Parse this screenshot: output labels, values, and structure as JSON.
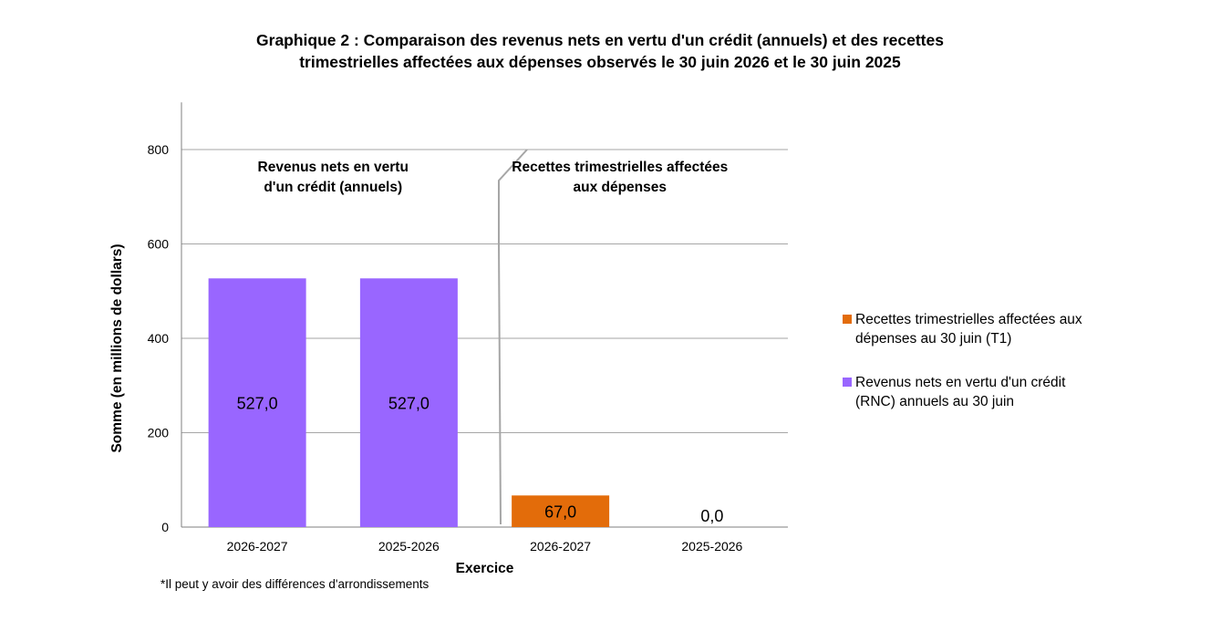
{
  "chart_data": {
    "type": "bar",
    "title_lines": [
      "Graphique 2 : Comparaison des revenus nets en vertu d'un crédit (annuels) et des recettes",
      "trimestrielles affectées aux dépenses observés le 30 juin 2026 et le 30 juin 2025"
    ],
    "xlabel": "Exercice",
    "ylabel": "Somme (en millions de dollars)",
    "ylim": [
      0,
      900
    ],
    "yticks": [
      0,
      200,
      400,
      600,
      800
    ],
    "grid": true,
    "categories": [
      "2026-2027",
      "2025-2026",
      "2026-2027",
      "2025-2026"
    ],
    "values": [
      527.0,
      527.0,
      67.0,
      0.0
    ],
    "value_labels": [
      "527,0",
      "527,0",
      "67,0",
      "0,0"
    ],
    "bar_series": [
      1,
      1,
      0,
      0
    ],
    "series": [
      {
        "name": "Recettes trimestrielles affectées aux dépenses au 30 juin (T1)",
        "color": "#E36C0A"
      },
      {
        "name": "Revenus nets en vertu d'un crédit (RNC) annuels au 30 juin",
        "color": "#9966FF"
      }
    ],
    "group_labels": [
      {
        "lines": [
          "Revenus nets en vertu",
          "d'un crédit (annuels)"
        ]
      },
      {
        "lines": [
          "Recettes trimestrielles affectées",
          "aux dépenses"
        ]
      }
    ],
    "legend_position": "right",
    "footnote": "*Il peut y avoir des différences d'arrondissements"
  }
}
